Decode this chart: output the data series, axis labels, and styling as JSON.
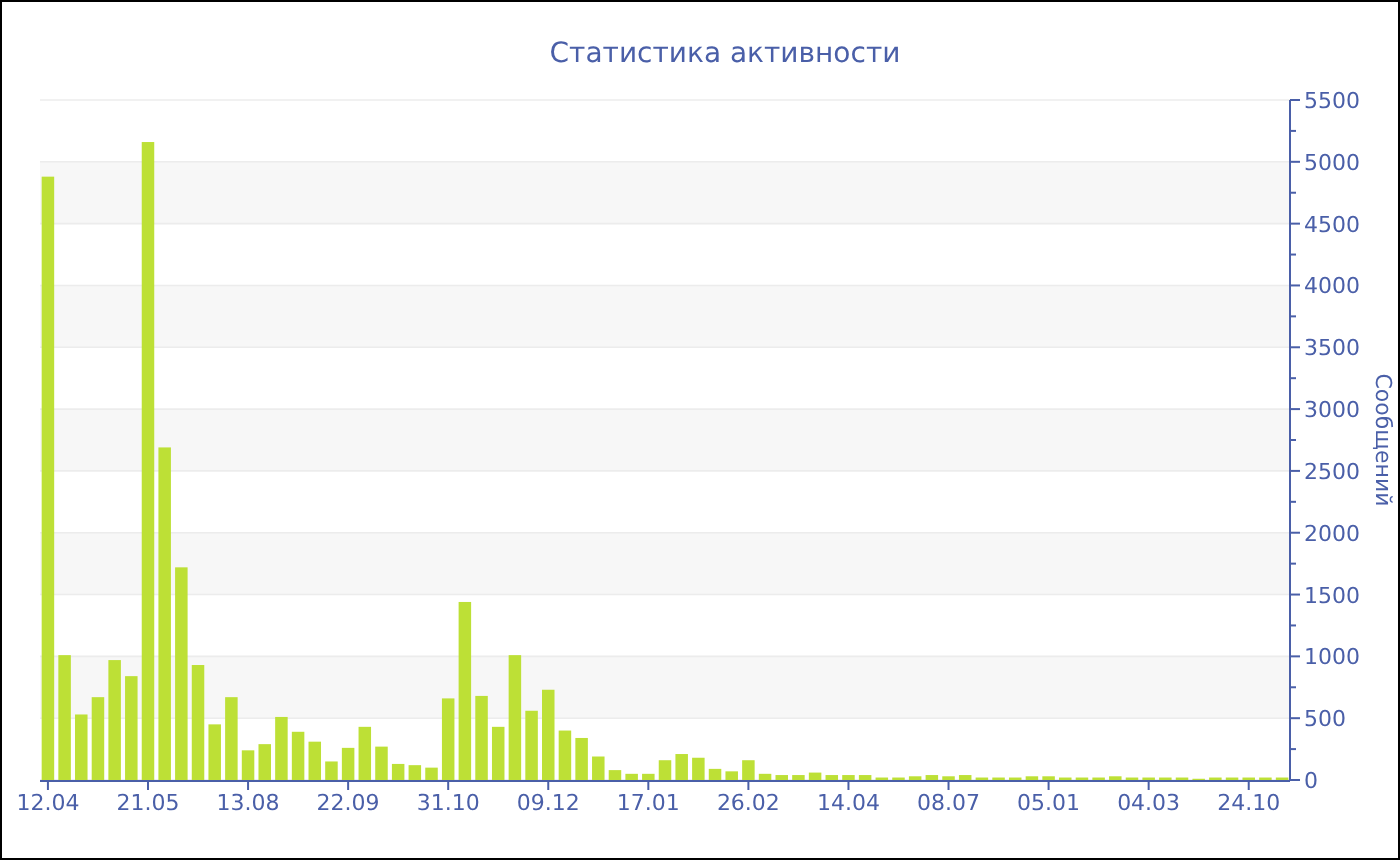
{
  "chart_data": {
    "type": "bar",
    "title": "Статистика активности",
    "ylabel": "Сообщений",
    "categories": [
      "12.04",
      null,
      null,
      null,
      null,
      null,
      "21.05",
      null,
      null,
      null,
      null,
      null,
      "13.08",
      null,
      null,
      null,
      null,
      null,
      "22.09",
      null,
      null,
      null,
      null,
      null,
      "31.10",
      null,
      null,
      null,
      null,
      null,
      "09.12",
      null,
      null,
      null,
      null,
      null,
      "17.01",
      null,
      null,
      null,
      null,
      null,
      "26.02",
      null,
      null,
      null,
      null,
      null,
      "14.04",
      null,
      null,
      null,
      null,
      null,
      "08.07",
      null,
      null,
      null,
      null,
      null,
      "05.01",
      null,
      null,
      null,
      null,
      null,
      "04.03",
      null,
      null,
      null,
      null,
      null,
      "24.10",
      null,
      null
    ],
    "values": [
      4880,
      1010,
      530,
      670,
      970,
      840,
      5160,
      2690,
      1720,
      930,
      450,
      670,
      240,
      290,
      510,
      390,
      310,
      150,
      260,
      430,
      270,
      130,
      120,
      100,
      660,
      1440,
      680,
      430,
      1010,
      560,
      730,
      400,
      340,
      190,
      80,
      50,
      50,
      160,
      210,
      180,
      90,
      70,
      160,
      50,
      40,
      40,
      60,
      40,
      40,
      40,
      20,
      20,
      30,
      40,
      30,
      40,
      20,
      20,
      20,
      30,
      30,
      20,
      20,
      20,
      30,
      20,
      20,
      20,
      20,
      10,
      20,
      20,
      20,
      20,
      20
    ],
    "color": "#bde036",
    "ylim": [
      0,
      5500
    ],
    "yticks": [
      0,
      {
        "value": 250,
        "label": null
      },
      500,
      {
        "value": 750,
        "label": null
      },
      1000,
      {
        "value": 1250,
        "label": null
      },
      1500,
      {
        "value": 1750,
        "label": null
      },
      2000,
      {
        "value": 2250,
        "label": null
      },
      2500,
      {
        "value": 2750,
        "label": null
      },
      3000,
      {
        "value": 3250,
        "label": null
      },
      3500,
      {
        "value": 3750,
        "label": null
      },
      4000,
      {
        "value": 4250,
        "label": null
      },
      4500,
      {
        "value": 4750,
        "label": null
      },
      5000,
      {
        "value": 5250,
        "label": null
      },
      5500
    ],
    "grid": "y"
  }
}
